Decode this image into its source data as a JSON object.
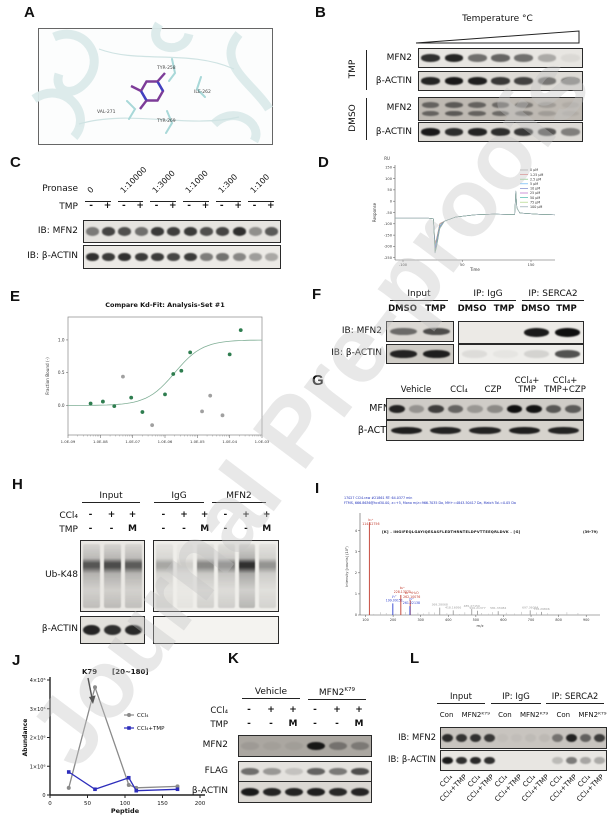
{
  "watermark": "Journal Pre-proofs",
  "panel_labels": {
    "A": "A",
    "B": "B",
    "C": "C",
    "D": "D",
    "E": "E",
    "F": "F",
    "G": "G",
    "H": "H",
    "I": "I",
    "J": "J",
    "K": "K",
    "L": "L"
  },
  "A": {
    "residues": [
      "TYR-258",
      "ILE-262",
      "VAL-271",
      "TYR-269"
    ]
  },
  "B": {
    "temperature_label": "Temperature °C",
    "groups": [
      {
        "name": "TMP",
        "rows": [
          {
            "label": "MFN2",
            "bands": [
              0.85,
              0.9,
              0.55,
              0.6,
              0.55,
              0.28,
              0.06
            ]
          },
          {
            "label": "β-ACTIN",
            "bands": [
              0.9,
              0.95,
              0.92,
              0.8,
              0.75,
              0.5,
              0.42
            ]
          }
        ]
      },
      {
        "name": "DMSO",
        "rows": [
          {
            "label": "MFN2",
            "bands": [
              0.55,
              0.6,
              0.55,
              0.5,
              0.4,
              0.18,
              0.08
            ]
          },
          {
            "label": "β-ACTIN",
            "bands": [
              0.95,
              0.85,
              0.9,
              0.85,
              0.8,
              0.65,
              0.45
            ]
          }
        ]
      }
    ]
  },
  "C": {
    "row1_label": "Pronase",
    "dilutions": [
      "0",
      "1:10000",
      "1:3000",
      "1:1000",
      "1:300",
      "1:100"
    ],
    "row2_label": "TMP",
    "tmp_signs": [
      "-",
      "+",
      "-",
      "+",
      "-",
      "+",
      "-",
      "+",
      "-",
      "+",
      "-",
      "+"
    ],
    "blots": [
      {
        "label": "IB: MFN2",
        "bands": [
          0.5,
          0.75,
          0.7,
          0.55,
          0.8,
          0.78,
          0.8,
          0.7,
          0.75,
          0.85,
          0.4,
          0.65
        ]
      },
      {
        "label": "IB: β-ACTIN",
        "bands": [
          0.85,
          0.8,
          0.85,
          0.8,
          0.8,
          0.75,
          0.8,
          0.5,
          0.55,
          0.45,
          0.35,
          0.3
        ]
      }
    ]
  },
  "F": {
    "col_groups": [
      "Input",
      "IP: IgG",
      "IP: SERCA2"
    ],
    "lane_labels": [
      "DMSO",
      "TMP"
    ],
    "row_labels": [
      "IB: MFN2",
      "IB: β-ACTIN"
    ],
    "bands": {
      "input_mfn2": [
        0.55,
        0.7
      ],
      "ip_mfn2": [
        0,
        0,
        0.95,
        1
      ],
      "input_actin": [
        0.9,
        0.92
      ],
      "ip_actin": [
        0.08,
        0.04,
        0.12,
        0.7
      ]
    }
  },
  "G": {
    "col_labels": [
      [
        "Vehicle",
        ""
      ],
      [
        "CCl₄",
        ""
      ],
      [
        "CZP",
        ""
      ],
      [
        "CCl₄+",
        "TMP"
      ],
      [
        "CCl₄+",
        "TMP+CZP"
      ]
    ],
    "rows": [
      {
        "label": "MFN2",
        "bands": [
          0.9,
          0.3,
          0.75,
          0.55,
          0.28,
          0.35,
          1,
          0.98,
          0.62,
          0.6
        ]
      },
      {
        "label": "β-ACTIN",
        "bands": [
          0.92,
          0.9,
          0.9,
          0.92,
          0.9
        ]
      }
    ]
  },
  "H": {
    "col_groups": [
      "Input",
      "IgG",
      "MFN2"
    ],
    "row1_label": "CCl₄",
    "ccl4_signs_groups": [
      [
        "-",
        "+",
        "+"
      ],
      [
        "-",
        "+",
        "+",
        "-",
        "+",
        "+"
      ]
    ],
    "row2_label": "TMP",
    "tmp_signs_groups": [
      [
        "-",
        "-",
        "M"
      ],
      [
        "-",
        "-",
        "M",
        "-",
        "-",
        "M"
      ]
    ],
    "ub_label": "Ub-K48",
    "actin_label": "β-ACTIN",
    "bands": {
      "input_ub": [
        0.75,
        0.8,
        0.72
      ],
      "ip_ub": [
        0.35,
        0.15,
        0.5,
        0.55,
        0.95,
        0.45
      ],
      "input_actin": [
        0.9,
        0.85,
        0.88
      ],
      "ip_actin": [
        0,
        0,
        0,
        0,
        0,
        0
      ]
    }
  },
  "K": {
    "col_groups": [
      {
        "base": "Vehicle",
        "sup": ""
      },
      {
        "base": "MFN2",
        "sup": "K79"
      }
    ],
    "row1_label": "CCl₄",
    "signs1": [
      "-",
      "+",
      "+",
      "-",
      "+",
      "+"
    ],
    "row2_label": "TMP",
    "signs2": [
      "-",
      "-",
      "M",
      "-",
      "-",
      "M"
    ],
    "rows": [
      {
        "label": "MFN2",
        "bands": [
          0.08,
          0.05,
          0.06,
          0.95,
          0.35,
          0.3
        ]
      },
      {
        "label": "FLAG",
        "bands": [
          0.55,
          0.35,
          0.15,
          0.6,
          0.5,
          0.7
        ]
      },
      {
        "label": "β-ACTIN",
        "bands": [
          0.95,
          0.9,
          0.9,
          0.92,
          0.88,
          0.9
        ]
      }
    ]
  },
  "L": {
    "col_groups": [
      "Input",
      "IP: IgG",
      "IP: SERCA2"
    ],
    "sub_labels": [
      "Con",
      "MFN2ᴷ⁷⁹",
      "Con",
      "MFN2ᴷ⁷⁹",
      "Con",
      "MFN2ᴷ⁷⁹"
    ],
    "row_labels": [
      "IB: MFN2",
      "IB: β-ACTIN"
    ],
    "bands": {
      "mfn2": [
        0.85,
        0.8,
        0.82,
        0.78,
        0.04,
        0.03,
        0.05,
        0.06,
        0.45,
        0.9,
        0.55,
        0.75
      ],
      "actin": [
        0.95,
        0.85,
        0.88,
        0.85,
        0,
        0,
        0,
        0,
        0.2,
        0.5,
        0.3,
        0.28
      ]
    },
    "lane_labels": [
      "CCl₄",
      "CCl₄+TMP",
      "CCl₄",
      "CCl₄+TMP",
      "CCl₄",
      "CCl₄+TMP",
      "CCl₄",
      "CCl₄+TMP",
      "CCl₄",
      "CCl₄+TMP",
      "CCl₄",
      "CCl₄+TMP"
    ]
  },
  "chart_data": [
    {
      "id": "D",
      "type": "line",
      "ylabel": "Response",
      "y_unit": "RU",
      "xlabel": "Time",
      "x_ticks": [
        "-100",
        "50",
        "150"
      ],
      "y_ticks": [
        150,
        100,
        50,
        0,
        -50,
        -100,
        -150,
        -200,
        -250
      ],
      "ylim": [
        -260,
        160
      ],
      "legend": [
        {
          "label": "0      µM",
          "color": "#9e9e9e"
        },
        {
          "label": "1.25 µM",
          "color": "#e57373"
        },
        {
          "label": "2.5   µM",
          "color": "#81c784"
        },
        {
          "label": "5      µM",
          "color": "#64b5f6"
        },
        {
          "label": "10    µM",
          "color": "#7986cb"
        },
        {
          "label": "25    µM",
          "color": "#ba68c8"
        },
        {
          "label": "50    µM",
          "color": "#4db6ac"
        },
        {
          "label": "75    µM",
          "color": "#aed581"
        },
        {
          "label": "100  µM",
          "color": "#90a4ae"
        }
      ],
      "profile": [
        [
          0,
          -75
        ],
        [
          0.21,
          -75
        ],
        [
          0.24,
          -78
        ],
        [
          0.25,
          -225
        ],
        [
          0.26,
          -200
        ],
        [
          0.28,
          -120
        ],
        [
          0.31,
          -88
        ],
        [
          0.38,
          -70
        ],
        [
          0.5,
          -60
        ],
        [
          0.62,
          -57
        ],
        [
          0.72,
          -59
        ],
        [
          0.748,
          -59
        ],
        [
          0.755,
          45
        ],
        [
          0.762,
          -30
        ],
        [
          0.78,
          -52
        ],
        [
          0.9,
          -58
        ],
        [
          1,
          -60
        ]
      ]
    },
    {
      "id": "E",
      "type": "scatter",
      "title": "Compare Kd-Fit: Analysis-Set #1",
      "ylabel": "Fraction Bound (-)",
      "x_ticks": [
        "1.0E-09",
        "1.0E-08",
        "1.0E-07",
        "1.0E-06",
        "1.0E-05",
        "1.0E-04",
        "1.0E-03"
      ],
      "y_ticks": [
        "1.0",
        "0.5",
        "0.0"
      ],
      "ylim": [
        -0.45,
        1.35
      ],
      "xlog_range": [
        -9,
        -3
      ],
      "points": [
        {
          "x": 5e-09,
          "y": 0.03,
          "included": true
        },
        {
          "x": 1.2e-08,
          "y": 0.06,
          "included": true
        },
        {
          "x": 2.7e-08,
          "y": -0.01,
          "included": true
        },
        {
          "x": 5e-08,
          "y": 0.44,
          "included": false
        },
        {
          "x": 9e-08,
          "y": 0.12,
          "included": true
        },
        {
          "x": 2e-07,
          "y": -0.1,
          "included": true
        },
        {
          "x": 4e-07,
          "y": -0.3,
          "included": false
        },
        {
          "x": 1e-06,
          "y": 0.17,
          "included": true
        },
        {
          "x": 1.8e-06,
          "y": 0.48,
          "included": true
        },
        {
          "x": 3.2e-06,
          "y": 0.53,
          "included": true
        },
        {
          "x": 6e-06,
          "y": 0.81,
          "included": true
        },
        {
          "x": 1.4e-05,
          "y": -0.09,
          "included": false
        },
        {
          "x": 2.5e-05,
          "y": 0.15,
          "included": false
        },
        {
          "x": 6e-05,
          "y": -0.15,
          "included": false
        },
        {
          "x": 0.0001,
          "y": 0.78,
          "included": true
        },
        {
          "x": 0.00022,
          "y": 1.15,
          "included": true
        }
      ],
      "fit": {
        "kd": 2e-06,
        "top": 1.0,
        "bottom": 0.0
      },
      "point_color": "#2e7d4f",
      "excluded_color": "#a0a0a0",
      "line_color": "#7fae95"
    },
    {
      "id": "I",
      "type": "ms2-spectrum",
      "header_line1": "17027 CCl4.raw #21861  RT: 64.0377 min",
      "header_line2": "FTMS, 666.8636@hcd30.00, z=+5, Mono m/z=966.7035 Da, MH+=4843.50417 Da, Match Tol.=0.05 Da",
      "peptide": "[K] . INGIFEQLGAYIQESASFLEDTHRNTELDPVTTEEQRLDVK . [G]",
      "peptide_range": "(39-79)",
      "xlabel": "m/z",
      "ylabel": "Intensity [counts] (10⁶)",
      "x_ticks": [
        100,
        200,
        300,
        400,
        500,
        600,
        700,
        800,
        900
      ],
      "y_ticks": [
        0,
        1,
        2,
        3,
        4
      ],
      "ylim": [
        0,
        4.6
      ],
      "xlim": [
        80,
        950
      ],
      "peaks": [
        {
          "mz": 114,
          "intensity": 4.4,
          "name": "b₁⁺",
          "value": "114.12756",
          "color": "#c0392b"
        },
        {
          "mz": 199,
          "intensity": 0.55,
          "name": "y₁⁺",
          "value": "199.09151",
          "color": "#2e3fcf"
        },
        {
          "mz": 228,
          "intensity": 0.95,
          "name": "b₂⁺",
          "value": "228.13375",
          "color": "#c0392b"
        },
        {
          "mz": 262,
          "intensity": 0.7,
          "name": "b₂⁺+H₂O",
          "value": "262.10076",
          "color": "#c0392b"
        },
        {
          "mz": 261,
          "intensity": 0.42,
          "name": "y₂⁺",
          "value": "261.22138",
          "color": "#2e3fcf"
        },
        {
          "mz": 369,
          "intensity": 0.35,
          "name": "",
          "value": "369.28068",
          "color": "#9e9e9e"
        },
        {
          "mz": 418,
          "intensity": 0.22,
          "name": "",
          "value": "418.16956",
          "color": "#9e9e9e"
        },
        {
          "mz": 485,
          "intensity": 0.28,
          "name": "",
          "value": "485.27159",
          "color": "#9e9e9e"
        },
        {
          "mz": 506,
          "intensity": 0.2,
          "name": "",
          "value": "506.21377",
          "color": "#9e9e9e"
        },
        {
          "mz": 581,
          "intensity": 0.18,
          "name": "",
          "value": "581.33084",
          "color": "#9e9e9e"
        },
        {
          "mz": 697,
          "intensity": 0.22,
          "name": "",
          "value": "697.36084",
          "color": "#9e9e9e"
        },
        {
          "mz": 738,
          "intensity": 0.15,
          "name": "",
          "value": "738.29806",
          "color": "#9e9e9e"
        }
      ],
      "minor_peaks": [
        130,
        155,
        175,
        210,
        245,
        290,
        310,
        330,
        350,
        395,
        440,
        460,
        520,
        545,
        560,
        610,
        640,
        665,
        720,
        760,
        800,
        830,
        870
      ]
    },
    {
      "id": "J",
      "type": "line",
      "annotation": {
        "text": "K79",
        "bracket": "[20~180]"
      },
      "ylabel": "Abundance",
      "xlabel": "Peptide",
      "x_ticks": [
        0,
        50,
        100,
        150,
        200
      ],
      "y_ticks": [
        "0",
        "1×10⁶",
        "2×10⁶",
        "3×10⁶",
        "4×10⁶"
      ],
      "ylim": [
        0,
        4000000
      ],
      "xlim": [
        0,
        200
      ],
      "series": [
        {
          "name": "CCl₄",
          "color": "#8a8a8a",
          "marker": "circle",
          "x": [
            25,
            60,
            105,
            115,
            170
          ],
          "y": [
            250000,
            3750000,
            350000,
            250000,
            300000
          ]
        },
        {
          "name": "CCl₄+TMP",
          "color": "#2d2dbb",
          "marker": "square",
          "x": [
            25,
            60,
            105,
            115,
            170
          ],
          "y": [
            800000,
            200000,
            600000,
            150000,
            200000
          ]
        }
      ]
    }
  ]
}
